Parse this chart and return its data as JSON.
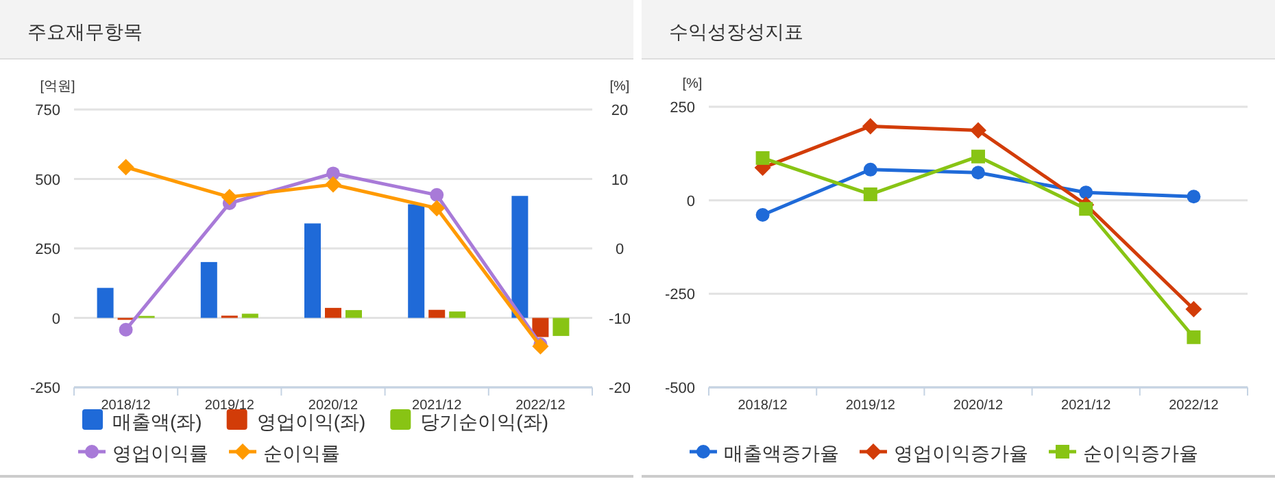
{
  "chart_data": [
    {
      "type": "bar",
      "title": "주요재무항목",
      "ylabel": "[억원]",
      "y2label": "[%]",
      "categories": [
        "2018/12",
        "2019/12",
        "2020/12",
        "2021/12",
        "2022/12"
      ],
      "ylim": [
        -250,
        750
      ],
      "yticks": [
        -250,
        0,
        250,
        500,
        750
      ],
      "y2lim": [
        -20,
        20
      ],
      "y2ticks": [
        -20,
        -10,
        0,
        10,
        20
      ],
      "grid": "y",
      "legend": "bottom",
      "line_style": "solid",
      "series": [
        {
          "name": "매출액(좌)",
          "color": "#1f6ad8",
          "values": [
            108,
            201,
            340,
            409,
            439
          ]
        },
        {
          "name": "영업이익(좌)",
          "color": "#d23c08",
          "values": [
            -7,
            8,
            36,
            29,
            -69
          ]
        },
        {
          "name": "당기순이익(좌)",
          "color": "#88c414",
          "values": [
            7,
            15,
            28,
            23,
            -65
          ]
        },
        {
          "name": "영업이익률",
          "type": "line",
          "axis": "y2",
          "marker": "circle",
          "color": "#a87ad8",
          "values": [
            -11.7,
            6.5,
            10.8,
            7.7,
            -13.8
          ]
        },
        {
          "name": "순이익률",
          "type": "line",
          "axis": "y2",
          "marker": "diamond",
          "color": "#ff9a00",
          "values": [
            11.7,
            7.4,
            9.2,
            5.8,
            -14.1
          ]
        }
      ]
    },
    {
      "type": "line",
      "title": "수익성장성지표",
      "ylabel": "[%]",
      "categories": [
        "2018/12",
        "2019/12",
        "2020/12",
        "2021/12",
        "2022/12"
      ],
      "ylim": [
        -500,
        250
      ],
      "yticks": [
        -500,
        -250,
        0,
        250
      ],
      "grid": "y",
      "legend": "bottom",
      "line_style": "solid",
      "series": [
        {
          "name": "매출액증가율",
          "marker": "circle",
          "color": "#1f6ad8",
          "values": [
            -39,
            82,
            74,
            21,
            10
          ]
        },
        {
          "name": "영업이익증가율",
          "marker": "diamond",
          "color": "#d23c08",
          "values": [
            87,
            198,
            187,
            -12,
            -291
          ]
        },
        {
          "name": "순이익증가율",
          "marker": "square",
          "color": "#88c414",
          "values": [
            113,
            16,
            117,
            -23,
            -366
          ]
        }
      ]
    }
  ]
}
